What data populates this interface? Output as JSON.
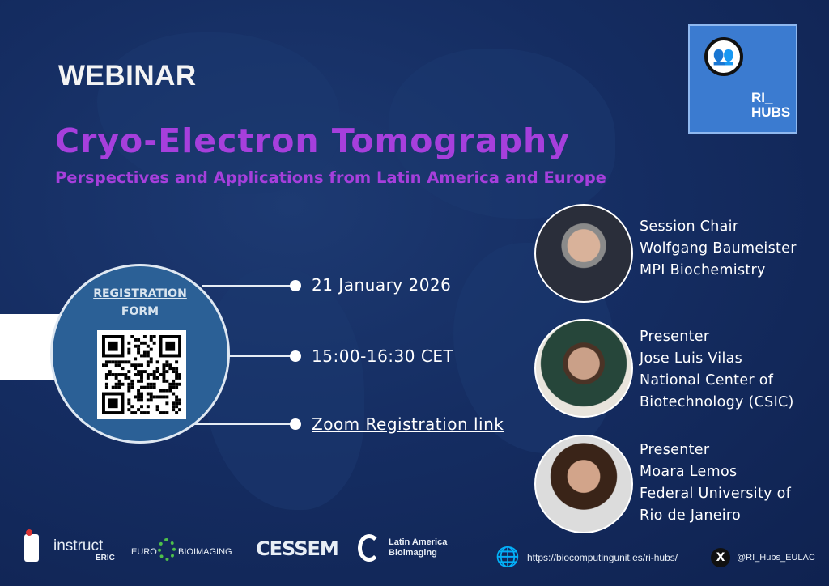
{
  "header": {
    "label": "WEBINAR",
    "title": "Cryo-Electron Tomography",
    "subtitle": "Perspectives and Applications from Latin America and Europe"
  },
  "registration": {
    "label_line1": "REGISTRATION",
    "label_line2": "FORM",
    "qr_icon": "qr-code"
  },
  "details": {
    "date": "21 January 2026",
    "time": "15:00-16:30 CET",
    "link": "Zoom Registration link"
  },
  "speakers": [
    {
      "role": "Session Chair",
      "name": "Wolfgang Baumeister",
      "affiliation": [
        "MPI Biochemistry"
      ]
    },
    {
      "role": "Presenter",
      "name": "Jose Luis Vilas",
      "affiliation": [
        "National Center of",
        "Biotechnology (CSIC)"
      ]
    },
    {
      "role": "Presenter",
      "name": "Moara Lemos",
      "affiliation": [
        "Federal University of",
        "Rio de Janeiro"
      ]
    }
  ],
  "logo": {
    "text_line1": "RI_",
    "text_line2": "HUBS"
  },
  "footer": {
    "logos": [
      "instruct",
      "ERIC",
      "EURO",
      "BIOIMAGING",
      "CESSEM",
      "Latin America",
      "Bioimaging"
    ],
    "website": "https://biocomputingunit.es/ri-hubs/",
    "twitter": "@RI_Hubs_EULAC"
  },
  "colors": {
    "background": "#13285a",
    "title": "#a63fdc",
    "circle": "#2b6096"
  }
}
